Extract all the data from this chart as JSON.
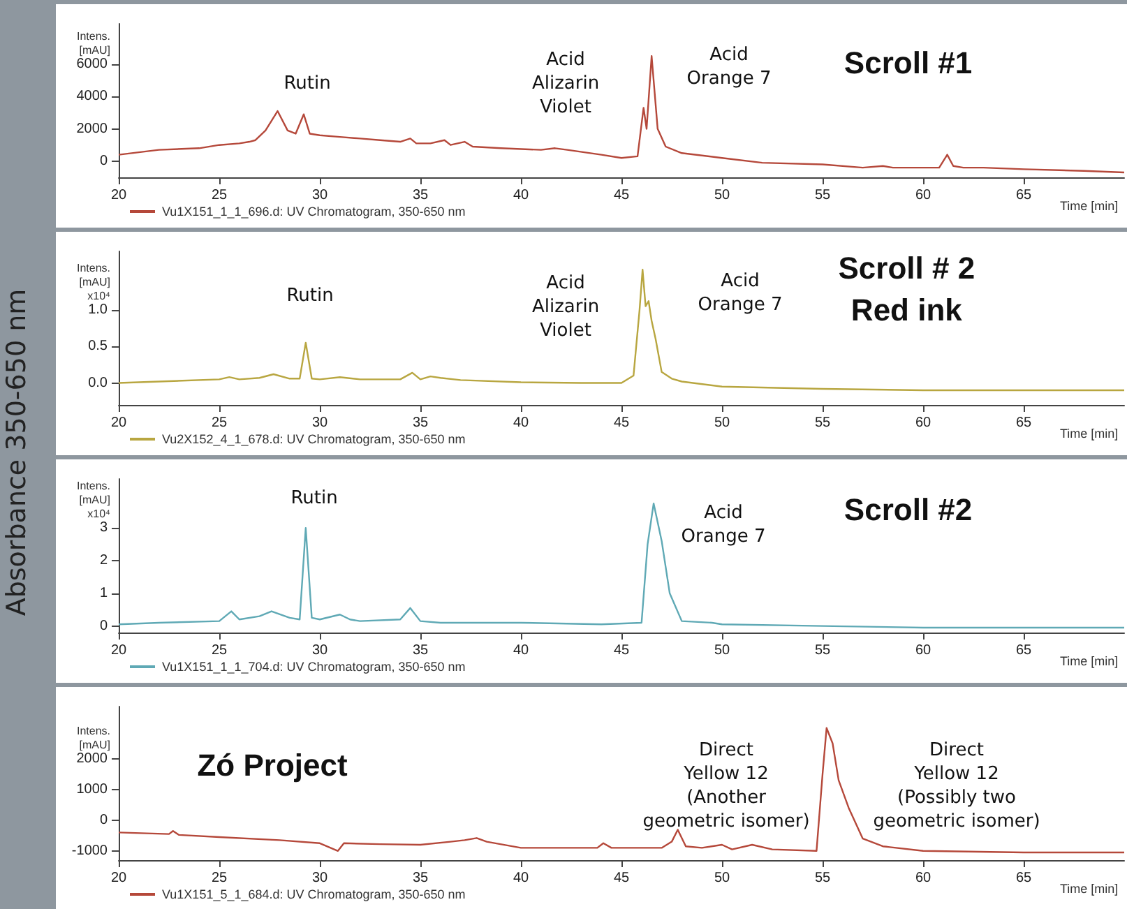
{
  "chart_data": [
    {
      "type": "line",
      "title": "Scroll #1",
      "xlabel": "Time [min]",
      "ylabel": "Intens.\n[mAU]",
      "legend": "bottom",
      "grid": false,
      "annotations": [
        "Absorbance 350-650 nm",
        "Rutin",
        "Acid\nAlizarin\nViolet",
        "Acid\nOrange 7"
      ],
      "xlim": [
        20,
        70
      ],
      "xticks": [
        20,
        25,
        30,
        35,
        40,
        45,
        50,
        55,
        60,
        65
      ],
      "ylim": [
        -1000,
        8500
      ],
      "yticks": [
        0,
        2000,
        4000,
        6000
      ],
      "series": [
        {
          "name": "Vu1X151_1_1_696.d: UV Chromatogram, 350-650 nm",
          "color": "#b5483a",
          "x": [
            20,
            22,
            24,
            25,
            26,
            26.5,
            26.8,
            27.3,
            27.9,
            28.4,
            28.8,
            29.2,
            29.5,
            30,
            31,
            32,
            33,
            34,
            34.5,
            34.8,
            35.5,
            36.2,
            36.5,
            37.2,
            37.6,
            39,
            41,
            41.7,
            42.3,
            44,
            45,
            45.8,
            46.1,
            46.25,
            46.5,
            46.8,
            47.2,
            48,
            50,
            52,
            55,
            57,
            58,
            58.5,
            60,
            60.8,
            61.2,
            61.5,
            62,
            63,
            65,
            68,
            70
          ],
          "values": [
            400,
            700,
            800,
            1000,
            1100,
            1200,
            1300,
            1900,
            3100,
            1900,
            1700,
            2900,
            1700,
            1600,
            1500,
            1400,
            1300,
            1200,
            1400,
            1100,
            1100,
            1300,
            1000,
            1200,
            900,
            800,
            700,
            800,
            700,
            400,
            200,
            300,
            3300,
            2000,
            6500,
            2000,
            900,
            500,
            200,
            -100,
            -200,
            -400,
            -300,
            -400,
            -400,
            -400,
            400,
            -300,
            -400,
            -400,
            -500,
            -600,
            -700
          ]
        }
      ]
    },
    {
      "type": "line",
      "title": "Scroll # 2\nRed ink",
      "xlabel": "Time [min]",
      "ylabel": "Intens.\n[mAU]\nx10⁴",
      "legend": "bottom",
      "grid": false,
      "annotations": [
        "Rutin",
        "Acid\nAlizarin\nViolet",
        "Acid\nOrange 7"
      ],
      "xlim": [
        20,
        70
      ],
      "xticks": [
        20,
        25,
        30,
        35,
        40,
        45,
        50,
        55,
        60,
        65
      ],
      "ylim": [
        -0.3,
        1.8
      ],
      "yticks": [
        {
          "value": 0,
          "label": "0.0"
        },
        {
          "value": 0.5,
          "label": "0.5"
        },
        {
          "value": 1,
          "label": "1.0"
        }
      ],
      "series": [
        {
          "name": "Vu2X152_4_1_678.d: UV Chromatogram, 350-650 nm",
          "color": "#b8a640",
          "x": [
            20,
            22,
            25,
            25.5,
            26,
            27,
            27.7,
            28.5,
            29,
            29.3,
            29.6,
            30,
            31,
            32,
            34,
            34.6,
            35,
            35.5,
            36,
            37,
            40,
            43,
            45,
            45.6,
            45.9,
            46.05,
            46.2,
            46.35,
            46.5,
            46.7,
            47,
            47.5,
            48,
            50,
            55,
            60,
            65,
            70
          ],
          "values": [
            0,
            0.02,
            0.05,
            0.08,
            0.05,
            0.07,
            0.12,
            0.06,
            0.06,
            0.55,
            0.06,
            0.05,
            0.08,
            0.05,
            0.05,
            0.14,
            0.05,
            0.09,
            0.07,
            0.04,
            0.01,
            0,
            0,
            0.1,
            1,
            1.55,
            1.05,
            1.12,
            0.85,
            0.6,
            0.15,
            0.06,
            0.02,
            -0.05,
            -0.08,
            -0.1,
            -0.1,
            -0.1
          ]
        }
      ]
    },
    {
      "type": "line",
      "title": "Scroll #2",
      "xlabel": "Time [min]",
      "ylabel": "Intens.\n[mAU]\nx10⁴",
      "legend": "bottom",
      "grid": false,
      "annotations": [
        "Rutin",
        "Acid\nOrange 7"
      ],
      "xlim": [
        20,
        70
      ],
      "xticks": [
        20,
        25,
        30,
        35,
        40,
        45,
        50,
        55,
        60,
        65
      ],
      "ylim": [
        -0.2,
        4.5
      ],
      "yticks": [
        0,
        1,
        2,
        3
      ],
      "series": [
        {
          "name": "Vu1X151_1_1_704.d: UV Chromatogram, 350-650 nm",
          "color": "#5fa9b5",
          "x": [
            20,
            22,
            25,
            25.6,
            26,
            27,
            27.6,
            28.5,
            29,
            29.3,
            29.6,
            30,
            31,
            31.5,
            32,
            34,
            34.5,
            35,
            36,
            40,
            44,
            46,
            46.3,
            46.6,
            47,
            47.4,
            48,
            49.5,
            50,
            55,
            60,
            65,
            70
          ],
          "values": [
            0.05,
            0.1,
            0.15,
            0.45,
            0.2,
            0.3,
            0.45,
            0.25,
            0.2,
            3,
            0.25,
            0.2,
            0.35,
            0.2,
            0.15,
            0.2,
            0.55,
            0.15,
            0.1,
            0.1,
            0.05,
            0.1,
            2.5,
            3.75,
            2.6,
            1,
            0.15,
            0.1,
            0.05,
            0,
            -0.05,
            -0.05,
            -0.05
          ]
        }
      ]
    },
    {
      "type": "line",
      "title": "Zó Project",
      "xlabel": "Time [min]",
      "ylabel": "Intens.\n[mAU]",
      "legend": "bottom",
      "grid": false,
      "annotations": [
        "Direct\nYellow 12\n(Another\ngeometric isomer)",
        "Direct\nYellow 12\n(Possibly two\ngeometric isomer)"
      ],
      "xlim": [
        20,
        70
      ],
      "xticks": [
        20,
        25,
        30,
        35,
        40,
        45,
        50,
        55,
        60,
        65
      ],
      "ylim": [
        -1300,
        3700
      ],
      "yticks": [
        -1000,
        0,
        1000,
        2000
      ],
      "series": [
        {
          "name": "Vu1X151_5_1_684.d: UV Chromatogram, 350-650 nm",
          "color": "#b5483a",
          "x": [
            20,
            22.5,
            22.7,
            23,
            25,
            28,
            30,
            30.9,
            31.2,
            33,
            35,
            36.5,
            37.2,
            37.8,
            38.3,
            40,
            43.8,
            44.1,
            44.5,
            47,
            47.5,
            47.8,
            48.2,
            49,
            50,
            50.5,
            51.5,
            52.5,
            54.7,
            55,
            55.2,
            55.5,
            55.8,
            56.3,
            57,
            58,
            60,
            65,
            70
          ],
          "values": [
            -400,
            -450,
            -350,
            -480,
            -550,
            -650,
            -750,
            -1000,
            -750,
            -780,
            -800,
            -700,
            -650,
            -580,
            -700,
            -900,
            -900,
            -750,
            -900,
            -900,
            -700,
            -310,
            -850,
            -900,
            -800,
            -950,
            -800,
            -950,
            -1000,
            1500,
            3000,
            2500,
            1300,
            400,
            -600,
            -850,
            -1000,
            -1050,
            -1050
          ]
        }
      ]
    }
  ]
}
